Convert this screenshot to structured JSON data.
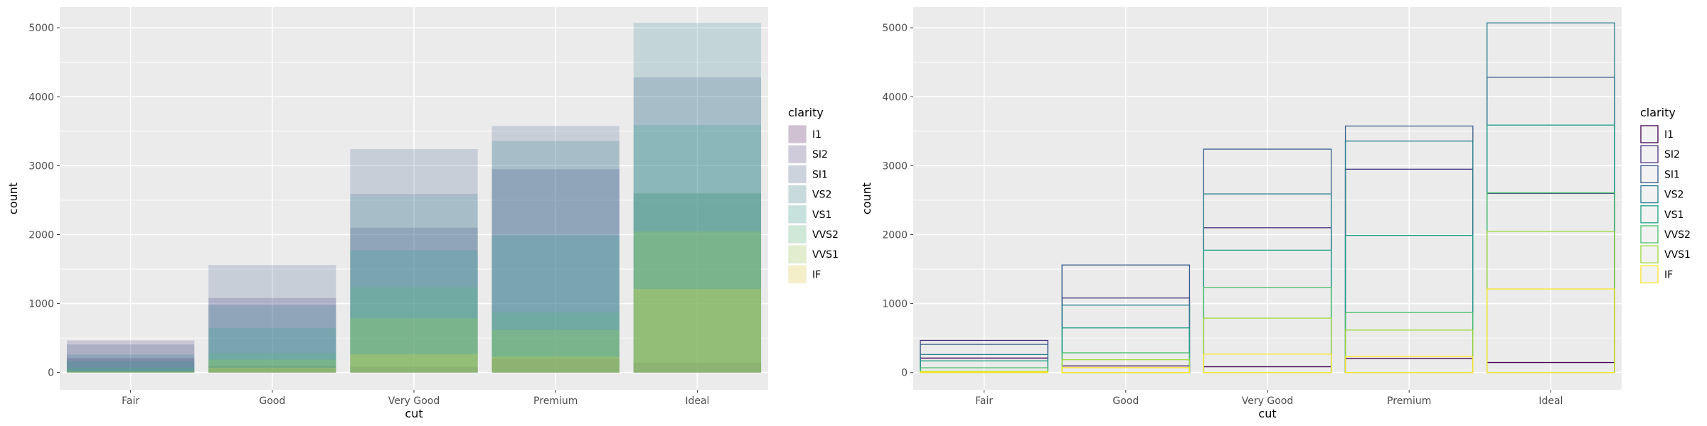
{
  "chart_data": [
    {
      "type": "bar",
      "variant": "overlapping-identity",
      "style": "filled",
      "fill_opacity": 0.2,
      "xlabel": "cut",
      "ylabel": "count",
      "categories": [
        "Fair",
        "Good",
        "Very Good",
        "Premium",
        "Ideal"
      ],
      "yticks": [
        0,
        1000,
        2000,
        3000,
        4000,
        5000
      ],
      "ylim": [
        -250,
        5300
      ],
      "grid": true,
      "legend": {
        "title": "clarity",
        "position": "right",
        "entries": [
          "I1",
          "SI2",
          "SI1",
          "VS2",
          "VS1",
          "VVS2",
          "VVS1",
          "IF"
        ]
      },
      "series": [
        {
          "name": "I1",
          "color": "#440154",
          "values": [
            210,
            96,
            84,
            205,
            146
          ]
        },
        {
          "name": "SI2",
          "color": "#46337E",
          "values": [
            466,
            1081,
            2100,
            2949,
            2598
          ]
        },
        {
          "name": "SI1",
          "color": "#365C8D",
          "values": [
            408,
            1560,
            3240,
            3575,
            4282
          ]
        },
        {
          "name": "VS2",
          "color": "#277F8E",
          "values": [
            261,
            978,
            2591,
            3357,
            5071
          ]
        },
        {
          "name": "VS1",
          "color": "#1FA187",
          "values": [
            170,
            648,
            1775,
            1989,
            3589
          ]
        },
        {
          "name": "VVS2",
          "color": "#4AC16D",
          "values": [
            69,
            286,
            1235,
            870,
            2606
          ]
        },
        {
          "name": "VVS1",
          "color": "#9FDA3A",
          "values": [
            17,
            186,
            789,
            616,
            2047
          ]
        },
        {
          "name": "IF",
          "color": "#FDE725",
          "values": [
            9,
            71,
            268,
            230,
            1212
          ]
        }
      ]
    },
    {
      "type": "bar",
      "variant": "overlapping-identity",
      "style": "outline",
      "xlabel": "cut",
      "ylabel": "count",
      "categories": [
        "Fair",
        "Good",
        "Very Good",
        "Premium",
        "Ideal"
      ],
      "yticks": [
        0,
        1000,
        2000,
        3000,
        4000,
        5000
      ],
      "ylim": [
        -250,
        5300
      ],
      "grid": true,
      "legend": {
        "title": "clarity",
        "position": "right",
        "entries": [
          "I1",
          "SI2",
          "SI1",
          "VS2",
          "VS1",
          "VVS2",
          "VVS1",
          "IF"
        ]
      },
      "series": [
        {
          "name": "I1",
          "color": "#440154",
          "values": [
            210,
            96,
            84,
            205,
            146
          ]
        },
        {
          "name": "SI2",
          "color": "#46337E",
          "values": [
            466,
            1081,
            2100,
            2949,
            2598
          ]
        },
        {
          "name": "SI1",
          "color": "#365C8D",
          "values": [
            408,
            1560,
            3240,
            3575,
            4282
          ]
        },
        {
          "name": "VS2",
          "color": "#277F8E",
          "values": [
            261,
            978,
            2591,
            3357,
            5071
          ]
        },
        {
          "name": "VS1",
          "color": "#1FA187",
          "values": [
            170,
            648,
            1775,
            1989,
            3589
          ]
        },
        {
          "name": "VVS2",
          "color": "#4AC16D",
          "values": [
            69,
            286,
            1235,
            870,
            2606
          ]
        },
        {
          "name": "VVS1",
          "color": "#9FDA3A",
          "values": [
            17,
            186,
            789,
            616,
            2047
          ]
        },
        {
          "name": "IF",
          "color": "#FDE725",
          "values": [
            9,
            71,
            268,
            230,
            1212
          ]
        }
      ]
    }
  ]
}
